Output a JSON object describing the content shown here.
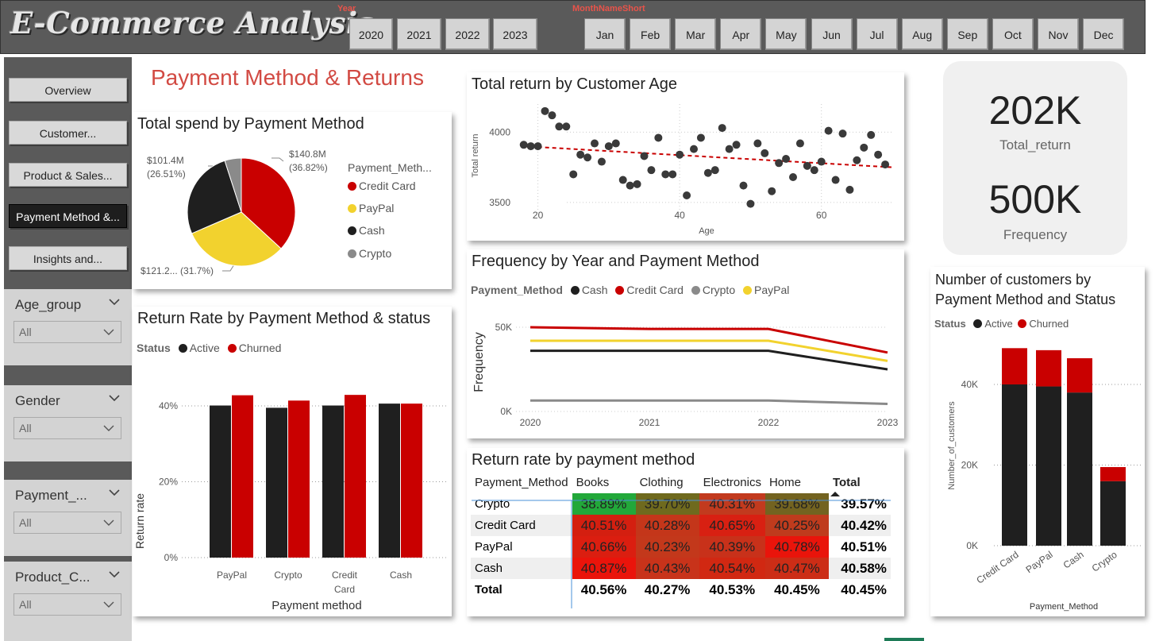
{
  "app": {
    "title": "E-Commerce Analysis"
  },
  "year_slicer": {
    "caption": "Year",
    "options": [
      "2020",
      "2021",
      "2022",
      "2023"
    ]
  },
  "month_slicer": {
    "caption": "MonthNameShort",
    "options": [
      "Jan",
      "Feb",
      "Mar",
      "Apr",
      "May",
      "Jun",
      "Jul",
      "Aug",
      "Sep",
      "Oct",
      "Nov",
      "Dec"
    ]
  },
  "sidebar": {
    "nav": [
      {
        "label": "Overview",
        "active": false
      },
      {
        "label": "Customer...",
        "active": false
      },
      {
        "label": "Product & Sales...",
        "active": false
      },
      {
        "label": "Payment Method &...",
        "active": true
      },
      {
        "label": "Insights and...",
        "active": false
      }
    ],
    "filters": [
      {
        "title": "Age_group",
        "value": "All"
      },
      {
        "title": "Gender",
        "value": "All"
      },
      {
        "title": "Payment_...",
        "value": "All"
      },
      {
        "title": "Product_C...",
        "value": "All"
      }
    ]
  },
  "page_heading": "Payment Method & Returns",
  "colors": {
    "credit_card": "#c90000",
    "paypal": "#f2d22e",
    "cash": "#1f1f1f",
    "crypto": "#8a8a8a",
    "active": "#1f1f1f",
    "churned": "#c90000"
  },
  "pie": {
    "title": "Total spend by Payment Method",
    "legend_title": "Payment_Meth...",
    "legend": [
      "Credit Card",
      "PayPal",
      "Cash",
      "Crypto"
    ],
    "labels": {
      "credit_value": "$140.8M",
      "credit_pct": "(36.82%)",
      "paypal": "$121.2... (31.7%)",
      "cash_value": "$101.4M",
      "cash_pct": "(26.51%)"
    },
    "chart_data": {
      "type": "pie",
      "categories": [
        "Credit Card",
        "PayPal",
        "Cash",
        "Crypto"
      ],
      "values": [
        36.82,
        31.7,
        26.51,
        4.97
      ],
      "value_labels": [
        "$140.8M",
        "$121.2M",
        "$101.4M",
        ""
      ]
    }
  },
  "scatter": {
    "title": "Total return by Customer Age",
    "xlabel": "Age",
    "ylabel": "Total return",
    "x_ticks": [
      "20",
      "40",
      "60"
    ],
    "y_ticks": [
      "4000",
      "3500"
    ],
    "chart_data": {
      "type": "scatter",
      "xlim": [
        14,
        70
      ],
      "ylim": [
        3420,
        4200
      ],
      "points": [
        [
          18,
          3910
        ],
        [
          19,
          3900
        ],
        [
          20,
          3900
        ],
        [
          21,
          4150
        ],
        [
          22,
          4120
        ],
        [
          23,
          4040
        ],
        [
          24,
          4040
        ],
        [
          25,
          3700
        ],
        [
          26,
          3840
        ],
        [
          27,
          3820
        ],
        [
          28,
          3920
        ],
        [
          29,
          3790
        ],
        [
          30,
          3900
        ],
        [
          31,
          3920
        ],
        [
          32,
          3660
        ],
        [
          33,
          3620
        ],
        [
          34,
          3630
        ],
        [
          35,
          3830
        ],
        [
          36,
          3730
        ],
        [
          37,
          3960
        ],
        [
          38,
          3700
        ],
        [
          39,
          3700
        ],
        [
          40,
          3840
        ],
        [
          41,
          3550
        ],
        [
          42,
          3880
        ],
        [
          43,
          3960
        ],
        [
          44,
          3710
        ],
        [
          45,
          3730
        ],
        [
          46,
          4030
        ],
        [
          47,
          3880
        ],
        [
          48,
          3910
        ],
        [
          49,
          3620
        ],
        [
          50,
          3490
        ],
        [
          51,
          3920
        ],
        [
          52,
          3850
        ],
        [
          53,
          3580
        ],
        [
          54,
          3780
        ],
        [
          55,
          3810
        ],
        [
          56,
          3680
        ],
        [
          57,
          3920
        ],
        [
          58,
          3760
        ],
        [
          59,
          3730
        ],
        [
          60,
          3790
        ],
        [
          61,
          4010
        ],
        [
          62,
          3660
        ],
        [
          63,
          3990
        ],
        [
          64,
          3590
        ],
        [
          65,
          3800
        ],
        [
          66,
          3890
        ],
        [
          67,
          3980
        ],
        [
          68,
          3840
        ],
        [
          69,
          3770
        ]
      ],
      "trend": [
        [
          18,
          3900
        ],
        [
          70,
          3750
        ]
      ]
    }
  },
  "kpi": {
    "total_return_value": "202K",
    "total_return_label": "Total_return",
    "frequency_value": "500K",
    "frequency_label": "Frequency"
  },
  "line": {
    "title": "Frequency by Year and Payment Method",
    "legend_title": "Payment_Method",
    "legend": [
      "Cash",
      "Credit Card",
      "Crypto",
      "PayPal"
    ],
    "ylabel": "Frequency",
    "y_ticks": [
      "50K",
      "0K"
    ],
    "x_ticks": [
      "2020",
      "2021",
      "2022",
      "2023"
    ],
    "chart_data": {
      "type": "line",
      "x": [
        2020,
        2021,
        2022,
        2023
      ],
      "ylim": [
        0,
        55000
      ],
      "series": [
        {
          "name": "Cash",
          "values": [
            36000,
            36000,
            36000,
            25000
          ]
        },
        {
          "name": "Credit Card",
          "values": [
            50000,
            49000,
            49000,
            35000
          ]
        },
        {
          "name": "Crypto",
          "values": [
            6500,
            6500,
            6500,
            4500
          ]
        },
        {
          "name": "PayPal",
          "values": [
            42000,
            42000,
            42000,
            30000
          ]
        }
      ]
    }
  },
  "bar_return": {
    "title": "Return Rate by Payment Method & status",
    "legend_title": "Status",
    "legend": [
      "Active",
      "Churned"
    ],
    "xlabel": "Payment method",
    "ylabel": "Return rate",
    "y_ticks": [
      "40%",
      "20%",
      "0%"
    ],
    "categories_display": [
      [
        "PayPal"
      ],
      [
        "Crypto"
      ],
      [
        "Credit",
        "Card"
      ],
      [
        "Cash"
      ]
    ],
    "chart_data": {
      "type": "bar",
      "categories": [
        "PayPal",
        "Crypto",
        "Credit Card",
        "Cash"
      ],
      "ylim": [
        0,
        50
      ],
      "series": [
        {
          "name": "Active",
          "values": [
            40.1,
            39.5,
            40.1,
            40.6
          ]
        },
        {
          "name": "Churned",
          "values": [
            42.8,
            41.4,
            42.9,
            40.6
          ]
        }
      ]
    }
  },
  "matrix": {
    "title": "Return rate by payment method",
    "columns": [
      "Payment_Method",
      "Books",
      "Clothing",
      "Electronics",
      "Home",
      "Total"
    ],
    "rows": [
      {
        "name": "Crypto",
        "cells": [
          "38.89%",
          "39.70%",
          "40.31%",
          "39.68%"
        ],
        "total": "39.57%",
        "colors": [
          "#22a83a",
          "#6f6a1e",
          "#c23a1e",
          "#736320"
        ]
      },
      {
        "name": "Credit Card",
        "cells": [
          "40.51%",
          "40.28%",
          "40.65%",
          "40.25%"
        ],
        "total": "40.42%",
        "colors": [
          "#d41f10",
          "#c4361a",
          "#d82012",
          "#bf3b1d"
        ]
      },
      {
        "name": "PayPal",
        "cells": [
          "40.66%",
          "40.23%",
          "40.39%",
          "40.78%"
        ],
        "total": "40.51%",
        "colors": [
          "#db1e10",
          "#c3381b",
          "#c8311a",
          "#e9140b"
        ]
      },
      {
        "name": "Cash",
        "cells": [
          "40.87%",
          "40.43%",
          "40.54%",
          "40.47%"
        ],
        "total": "40.58%",
        "colors": [
          "#ea140b",
          "#c8331a",
          "#d12812",
          "#cc2d16"
        ]
      }
    ],
    "total_row": {
      "name": "Total",
      "cells": [
        "40.56%",
        "40.27%",
        "40.53%",
        "40.45%"
      ],
      "total": "40.45%"
    }
  },
  "stacked": {
    "title_line1": "Number of customers by",
    "title_line2": "Payment Method and Status",
    "legend_title": "Status",
    "legend": [
      "Active",
      "Churned"
    ],
    "xlabel": "Payment_Method",
    "ylabel": "Number_of_customers",
    "y_ticks": [
      "40K",
      "20K",
      "0K"
    ],
    "chart_data": {
      "type": "bar",
      "stacked": true,
      "categories": [
        "Credit Card",
        "PayPal",
        "Cash",
        "Crypto"
      ],
      "ylim": [
        0,
        50000
      ],
      "series": [
        {
          "name": "Active",
          "values": [
            40000,
            39500,
            38000,
            16000
          ]
        },
        {
          "name": "Churned",
          "values": [
            9000,
            9000,
            8500,
            3500
          ]
        }
      ]
    }
  }
}
